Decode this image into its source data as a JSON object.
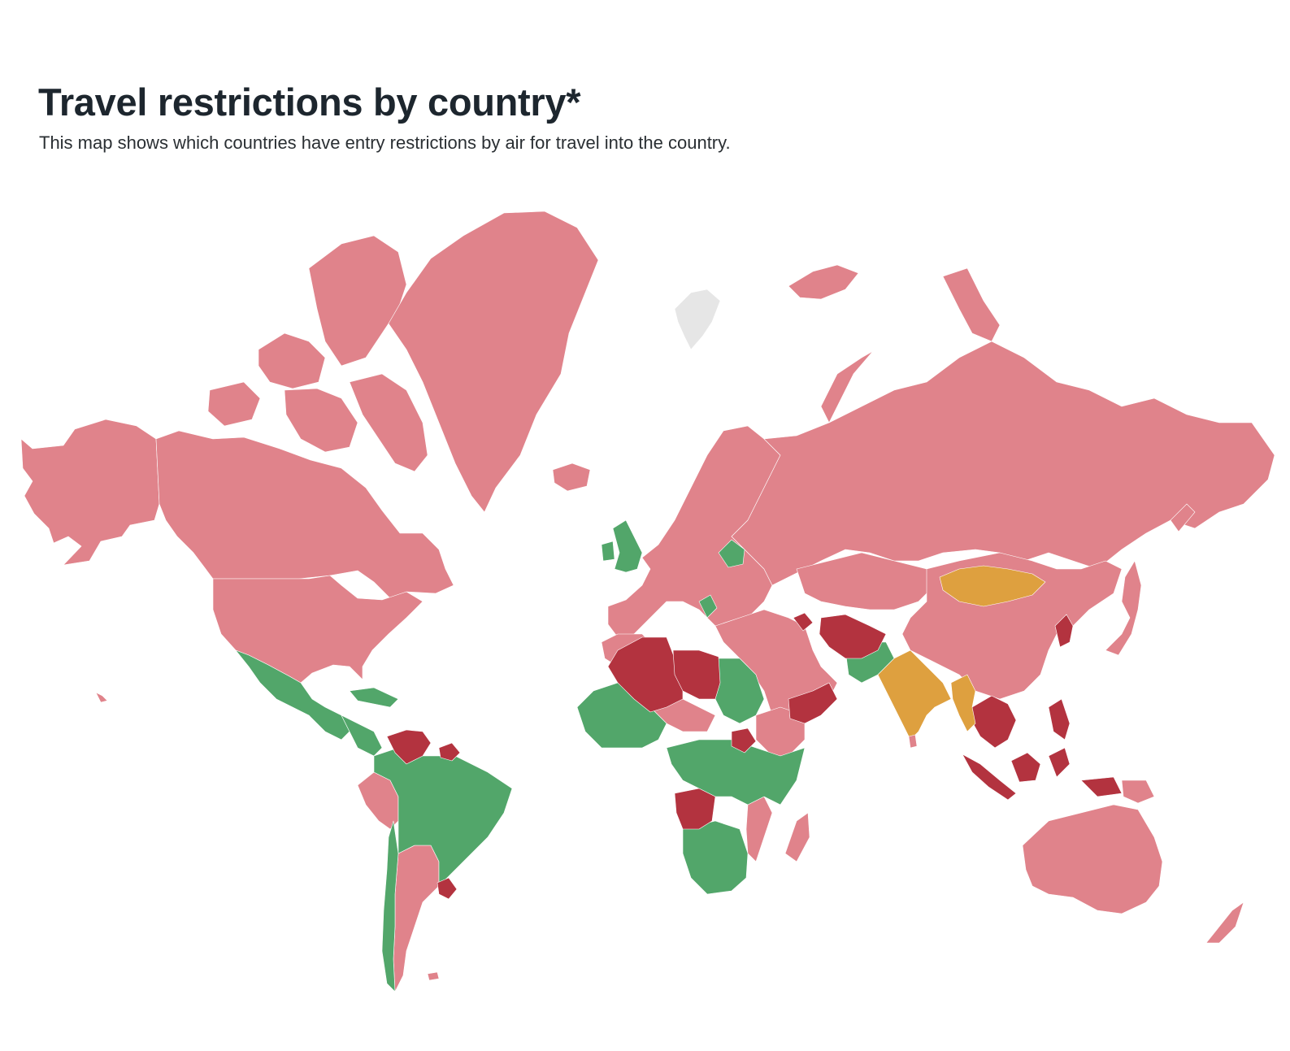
{
  "map": {
    "title": "Travel restrictions by country*",
    "subtitle": "This map shows which countries have entry restrictions by air for travel into the country.",
    "colors": {
      "pink": "#e0838b",
      "green": "#52a66a",
      "red": "#b3333f",
      "orange": "#dea03f",
      "grey": "#e6e6e6"
    }
  }
}
